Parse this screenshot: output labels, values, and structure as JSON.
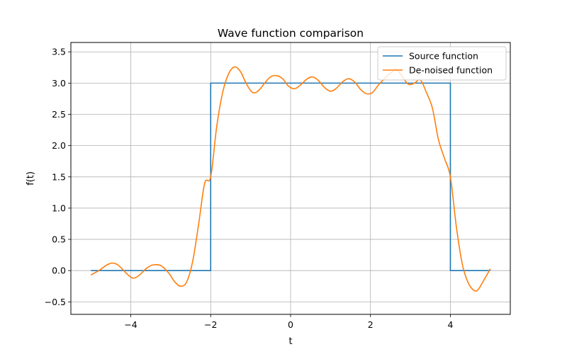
{
  "chart_data": {
    "type": "line",
    "title": "Wave function comparison",
    "xlabel": "t",
    "ylabel": "f(t)",
    "xlim": [
      -5.5,
      5.5
    ],
    "ylim": [
      -0.7,
      3.65
    ],
    "grid": true,
    "legend_position": "top-right",
    "x_ticks": [
      -4,
      -2,
      0,
      2,
      4
    ],
    "x_tick_labels": [
      "−4",
      "−2",
      "0",
      "2",
      "4"
    ],
    "y_ticks": [
      -0.5,
      0.0,
      0.5,
      1.0,
      1.5,
      2.0,
      2.5,
      3.0,
      3.5
    ],
    "y_tick_labels": [
      "−0.5",
      "0.0",
      "0.5",
      "1.0",
      "1.5",
      "2.0",
      "2.5",
      "3.0",
      "3.5"
    ],
    "series": [
      {
        "name": "Source function",
        "color": "#1f77b4",
        "x": [
          -5,
          -2,
          -2,
          4,
          4,
          5
        ],
        "y": [
          0,
          0,
          3,
          3,
          0,
          0
        ]
      },
      {
        "name": "De-noised function",
        "color": "#ff7f0e",
        "x": [
          -5.0,
          -4.8,
          -4.6,
          -4.45,
          -4.3,
          -4.1,
          -3.95,
          -3.8,
          -3.6,
          -3.45,
          -3.25,
          -3.05,
          -2.9,
          -2.75,
          -2.6,
          -2.45,
          -2.3,
          -2.15,
          -2.0,
          -1.85,
          -1.7,
          -1.55,
          -1.4,
          -1.25,
          -1.1,
          -0.95,
          -0.8,
          -0.65,
          -0.5,
          -0.35,
          -0.2,
          -0.05,
          0.1,
          0.25,
          0.4,
          0.55,
          0.7,
          0.85,
          1.0,
          1.15,
          1.3,
          1.45,
          1.6,
          1.75,
          1.9,
          2.05,
          2.2,
          2.35,
          2.5,
          2.65,
          2.8,
          2.95,
          3.1,
          3.25,
          3.4,
          3.55,
          3.7,
          3.85,
          4.0,
          4.15,
          4.3,
          4.45,
          4.6,
          4.7,
          4.85,
          5.0
        ],
        "y": [
          -0.07,
          0.0,
          0.09,
          0.12,
          0.08,
          -0.05,
          -0.12,
          -0.08,
          0.04,
          0.09,
          0.08,
          -0.04,
          -0.18,
          -0.25,
          -0.18,
          0.15,
          0.75,
          1.4,
          1.5,
          2.3,
          2.85,
          3.15,
          3.26,
          3.18,
          2.98,
          2.85,
          2.88,
          3.0,
          3.1,
          3.12,
          3.07,
          2.95,
          2.91,
          2.97,
          3.06,
          3.1,
          3.04,
          2.93,
          2.87,
          2.92,
          3.02,
          3.07,
          3.02,
          2.9,
          2.83,
          2.85,
          2.97,
          3.07,
          3.16,
          3.22,
          3.1,
          2.98,
          3.0,
          3.05,
          2.85,
          2.6,
          2.1,
          1.8,
          1.5,
          0.7,
          0.1,
          -0.2,
          -0.32,
          -0.3,
          -0.14,
          0.03
        ]
      }
    ]
  }
}
